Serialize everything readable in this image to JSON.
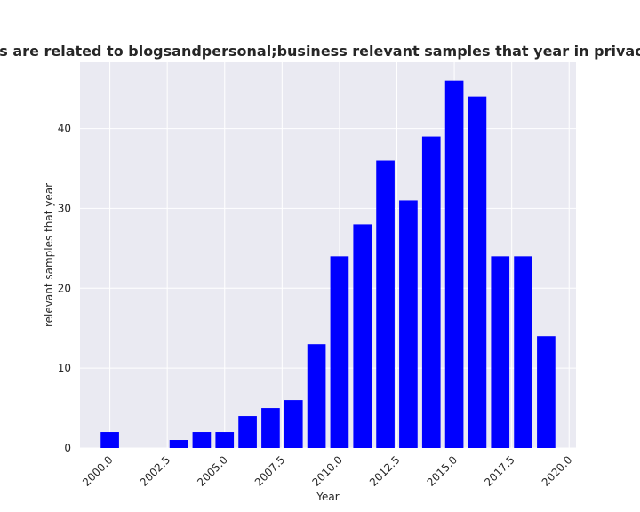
{
  "chart_data": {
    "type": "bar",
    "title": "Categories are related to blogsandpersonal;business relevant samples that year in privacy policies",
    "xlabel": "Year",
    "ylabel": "relevant samples that year",
    "x": [
      2000,
      2003,
      2004,
      2005,
      2006,
      2007,
      2008,
      2009,
      2010,
      2011,
      2012,
      2013,
      2014,
      2015,
      2016,
      2017,
      2018,
      2019
    ],
    "values": [
      2,
      1,
      2,
      2,
      4,
      5,
      6,
      13,
      24,
      28,
      36,
      31,
      39,
      46,
      44,
      24,
      24,
      14
    ],
    "xlim": [
      1998.7,
      2020.3
    ],
    "ylim": [
      0,
      48.3
    ],
    "xticks": [
      "2000.0",
      "2002.5",
      "2005.0",
      "2007.5",
      "2010.0",
      "2012.5",
      "2015.0",
      "2017.5",
      "2020.0"
    ],
    "yticks": [
      "0",
      "10",
      "20",
      "30",
      "40"
    ],
    "bar_color": "#0000ff",
    "background_color": "#eaeaf2",
    "grid_color": "#ffffff",
    "grid": true
  }
}
